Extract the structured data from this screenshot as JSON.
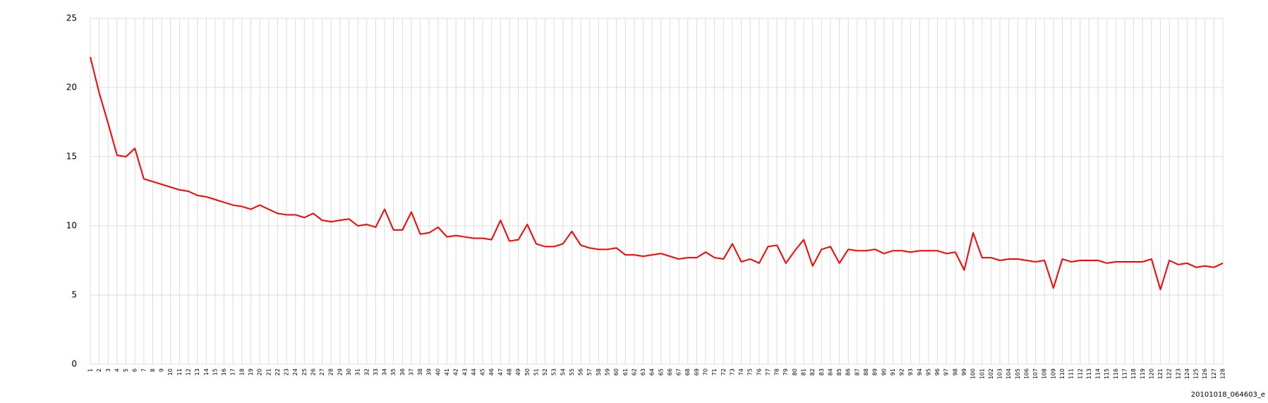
{
  "chart_data": {
    "type": "line",
    "categories": [
      1,
      2,
      3,
      4,
      5,
      6,
      7,
      8,
      9,
      10,
      11,
      12,
      13,
      14,
      15,
      16,
      17,
      18,
      19,
      20,
      21,
      22,
      23,
      24,
      25,
      26,
      27,
      28,
      29,
      30,
      31,
      32,
      33,
      34,
      35,
      36,
      37,
      38,
      39,
      40,
      41,
      42,
      43,
      44,
      45,
      46,
      47,
      48,
      49,
      50,
      51,
      52,
      53,
      54,
      55,
      56,
      57,
      58,
      59,
      60,
      61,
      62,
      63,
      64,
      65,
      66,
      67,
      68,
      69,
      70,
      71,
      72,
      73,
      74,
      75,
      76,
      77,
      78,
      79,
      80,
      81,
      82,
      83,
      84,
      85,
      86,
      87,
      88,
      89,
      90,
      91,
      92,
      93,
      94,
      95,
      96,
      97,
      98,
      99,
      100,
      101,
      102,
      103,
      104,
      105,
      106,
      107,
      108,
      109,
      110,
      111,
      112,
      113,
      114,
      115,
      116,
      117,
      118,
      119,
      120,
      121,
      122,
      123,
      124,
      125,
      126,
      127,
      128
    ],
    "series": [
      {
        "color": "#ff0000",
        "values": [
          22.2,
          19.6,
          17.4,
          15.1,
          15.0,
          15.6,
          13.4,
          13.2,
          13.0,
          12.8,
          12.6,
          12.5,
          12.2,
          12.1,
          11.9,
          11.7,
          11.5,
          11.4,
          11.2,
          11.5,
          11.2,
          10.9,
          10.8,
          10.8,
          10.6,
          10.9,
          10.4,
          10.3,
          10.4,
          10.5,
          10.0,
          10.1,
          9.9,
          11.2,
          9.7,
          9.7,
          11.0,
          9.4,
          9.5,
          9.9,
          9.2,
          9.3,
          9.2,
          9.1,
          9.1,
          9.0,
          10.4,
          8.9,
          9.0,
          10.1,
          8.7,
          8.5,
          8.5,
          8.7,
          9.6,
          8.6,
          8.4,
          8.3,
          8.3,
          8.4,
          7.9,
          7.9,
          7.8,
          7.9,
          8.0,
          7.8,
          7.6,
          7.7,
          7.7,
          8.1,
          7.7,
          7.6,
          8.7,
          7.4,
          7.6,
          7.3,
          8.5,
          8.6,
          7.3,
          8.2,
          9.0,
          7.1,
          8.3,
          8.5,
          7.3,
          8.3,
          8.2,
          8.2,
          8.3,
          8.0,
          8.2,
          8.2,
          8.1,
          8.2,
          8.2,
          8.2,
          8.0,
          8.1,
          6.8,
          9.5,
          7.7,
          7.7,
          7.5,
          7.6,
          7.6,
          7.5,
          7.4,
          7.5,
          5.5,
          7.6,
          7.4,
          7.5,
          7.5,
          7.5,
          7.3,
          7.4,
          7.4,
          7.4,
          7.4,
          7.6,
          5.4,
          7.5,
          7.2,
          7.3,
          7.0,
          7.1,
          7.0,
          7.3
        ]
      }
    ],
    "ylim": [
      0,
      25
    ],
    "yticks": [
      0,
      5,
      10,
      15,
      20,
      25
    ],
    "grid": true,
    "annotation": "20101018_064603_e"
  }
}
